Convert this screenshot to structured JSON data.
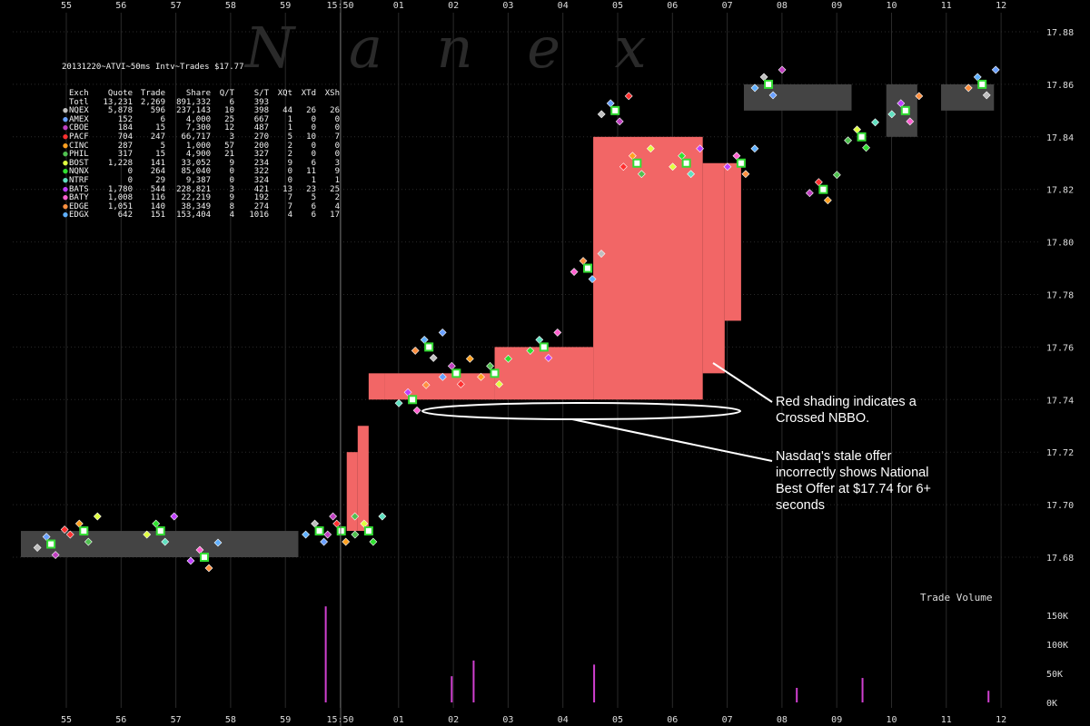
{
  "chart_title": "20131220~ATVI~50ms Intv~Trades $17.77",
  "watermark": "N a n e x",
  "stats_table": {
    "headers": [
      "Exch",
      "Quote",
      "Trade",
      "Share",
      "Q/T",
      "S/T",
      "XQt",
      "XTd",
      "XSh"
    ],
    "rows": [
      {
        "exch": "Totl",
        "quote": "13,231",
        "trade": "2,269",
        "share": "891,332",
        "qt": "6",
        "st": "393",
        "xqt": "",
        "xtd": "",
        "xsh": "",
        "color": ""
      },
      {
        "exch": "NQEX",
        "quote": "5,878",
        "trade": "596",
        "share": "237,143",
        "qt": "10",
        "st": "398",
        "xqt": "44",
        "xtd": "26",
        "xsh": "26",
        "color": "#bfbfbf"
      },
      {
        "exch": "AMEX",
        "quote": "152",
        "trade": "6",
        "share": "4,000",
        "qt": "25",
        "st": "667",
        "xqt": "1",
        "xtd": "0",
        "xsh": "0",
        "color": "#6aa0ff"
      },
      {
        "exch": "CBOE",
        "quote": "184",
        "trade": "15",
        "share": "7,300",
        "qt": "12",
        "st": "487",
        "xqt": "1",
        "xtd": "0",
        "xsh": "0",
        "color": "#c040c0"
      },
      {
        "exch": "PACF",
        "quote": "704",
        "trade": "247",
        "share": "66,717",
        "qt": "3",
        "st": "270",
        "xqt": "5",
        "xtd": "10",
        "xsh": "7",
        "color": "#ff3030"
      },
      {
        "exch": "CINC",
        "quote": "287",
        "trade": "5",
        "share": "1,000",
        "qt": "57",
        "st": "200",
        "xqt": "2",
        "xtd": "0",
        "xsh": "0",
        "color": "#ffa020"
      },
      {
        "exch": "PHIL",
        "quote": "317",
        "trade": "15",
        "share": "4,900",
        "qt": "21",
        "st": "327",
        "xqt": "2",
        "xtd": "0",
        "xsh": "0",
        "color": "#50c050"
      },
      {
        "exch": "BOST",
        "quote": "1,228",
        "trade": "141",
        "share": "33,052",
        "qt": "9",
        "st": "234",
        "xqt": "9",
        "xtd": "6",
        "xsh": "3",
        "color": "#e0ff40"
      },
      {
        "exch": "NQNX",
        "quote": "0",
        "trade": "264",
        "share": "85,040",
        "qt": "0",
        "st": "322",
        "xqt": "0",
        "xtd": "11",
        "xsh": "9",
        "color": "#30e030"
      },
      {
        "exch": "NTRF",
        "quote": "0",
        "trade": "29",
        "share": "9,387",
        "qt": "0",
        "st": "324",
        "xqt": "0",
        "xtd": "1",
        "xsh": "1",
        "color": "#60e0c0"
      },
      {
        "exch": "BATS",
        "quote": "1,780",
        "trade": "544",
        "share": "228,821",
        "qt": "3",
        "st": "421",
        "xqt": "13",
        "xtd": "23",
        "xsh": "25",
        "color": "#c040ff"
      },
      {
        "exch": "BATY",
        "quote": "1,008",
        "trade": "116",
        "share": "22,219",
        "qt": "9",
        "st": "192",
        "xqt": "7",
        "xtd": "5",
        "xsh": "2",
        "color": "#ff60d0"
      },
      {
        "exch": "EDGE",
        "quote": "1,051",
        "trade": "140",
        "share": "38,349",
        "qt": "8",
        "st": "274",
        "xqt": "7",
        "xtd": "6",
        "xsh": "4",
        "color": "#ff9040"
      },
      {
        "exch": "EDGX",
        "quote": "642",
        "trade": "151",
        "share": "153,404",
        "qt": "4",
        "st": "1016",
        "xqt": "4",
        "xtd": "6",
        "xsh": "17",
        "color": "#60b0ff"
      }
    ]
  },
  "annotations": {
    "crossed": "Red shading indicates a\nCrossed NBBO.",
    "stale": "Nasdaq's stale offer\nincorrectly shows National\nBest Offer at $17.74 for 6+\nseconds"
  },
  "volume_label": "Trade Volume",
  "colors": {
    "nbbo": "#444444",
    "crossed": "#f26666",
    "grid": "#2a2a2a",
    "axis_text": "#dddddd",
    "trade_marker": "#33dd33"
  },
  "chart_data": {
    "type": "scatter",
    "x_tick_labels": [
      "55",
      "56",
      "57",
      "58",
      "59",
      "15:50",
      "01",
      "02",
      "03",
      "04",
      "05",
      "06",
      "07",
      "08",
      "09",
      "10",
      "11",
      "12"
    ],
    "y_tick_labels": [
      "17.68",
      "17.70",
      "17.72",
      "17.74",
      "17.76",
      "17.78",
      "17.80",
      "17.82",
      "17.84",
      "17.86",
      "17.88"
    ],
    "ylim": [
      17.67,
      17.89
    ],
    "volume_tick_labels": [
      "0K",
      "50K",
      "100K",
      "150K"
    ],
    "volume_ylim": [
      0,
      170000
    ],
    "nbbo_band": [
      {
        "t0": "15:49:55",
        "t1": "15:49:59.9",
        "bid": 17.68,
        "ask": 17.69
      },
      {
        "t0": "15:50:08.2",
        "t1": "15:50:10",
        "bid": 17.85,
        "ask": 17.86
      },
      {
        "t0": "15:50:10.8",
        "t1": "15:50:11.2",
        "bid": 17.84,
        "ask": 17.86
      },
      {
        "t0": "15:50:11.8",
        "t1": "15:50:12.6",
        "bid": 17.85,
        "ask": 17.86
      }
    ],
    "crossed_periods": [
      {
        "t0": "15:50:00.8",
        "t1": "15:50:01.0",
        "bid_high": 17.72,
        "ask_low": 17.69
      },
      {
        "t0": "15:50:01.0",
        "t1": "15:50:01.2",
        "bid_high": 17.73,
        "ask_low": 17.69
      },
      {
        "t0": "15:50:01.2",
        "t1": "15:50:01.5",
        "bid_high": 17.75,
        "ask_low": 17.74
      },
      {
        "t0": "15:50:01.5",
        "t1": "15:50:03.5",
        "bid_high": 17.75,
        "ask_low": 17.74
      },
      {
        "t0": "15:50:03.5",
        "t1": "15:50:05.3",
        "bid_high": 17.76,
        "ask_low": 17.74
      },
      {
        "t0": "15:50:05.3",
        "t1": "15:50:07.3",
        "bid_high": 17.84,
        "ask_low": 17.74
      },
      {
        "t0": "15:50:07.3",
        "t1": "15:50:07.7",
        "bid_high": 17.83,
        "ask_low": 17.75
      },
      {
        "t0": "15:50:07.7",
        "t1": "15:50:08.0",
        "bid_high": 17.83,
        "ask_low": 17.77
      }
    ],
    "trades": [
      {
        "t": "15:49:55.4",
        "price": 17.685
      },
      {
        "t": "15:49:56.0",
        "price": 17.69
      },
      {
        "t": "15:49:57.4",
        "price": 17.69
      },
      {
        "t": "15:49:58.2",
        "price": 17.68
      },
      {
        "t": "15:50:00.3",
        "price": 17.69
      },
      {
        "t": "15:50:00.7",
        "price": 17.69
      },
      {
        "t": "15:50:01.2",
        "price": 17.69
      },
      {
        "t": "15:50:02.0",
        "price": 17.74
      },
      {
        "t": "15:50:02.3",
        "price": 17.76
      },
      {
        "t": "15:50:02.8",
        "price": 17.75
      },
      {
        "t": "15:50:03.5",
        "price": 17.75
      },
      {
        "t": "15:50:04.4",
        "price": 17.76
      },
      {
        "t": "15:50:05.2",
        "price": 17.79
      },
      {
        "t": "15:50:05.7",
        "price": 17.85
      },
      {
        "t": "15:50:06.1",
        "price": 17.83
      },
      {
        "t": "15:50:07.0",
        "price": 17.83
      },
      {
        "t": "15:50:08.0",
        "price": 17.83
      },
      {
        "t": "15:50:08.5",
        "price": 17.86
      },
      {
        "t": "15:50:09.5",
        "price": 17.82
      },
      {
        "t": "15:50:10.2",
        "price": 17.84
      },
      {
        "t": "15:50:11.0",
        "price": 17.85
      },
      {
        "t": "15:50:12.4",
        "price": 17.86
      }
    ],
    "volume_spikes": [
      {
        "t": "15:50:00.4",
        "volume": 165000
      },
      {
        "t": "15:50:03.1",
        "volume": 72000
      },
      {
        "t": "15:50:02.7",
        "volume": 45000
      },
      {
        "t": "15:50:05.3",
        "volume": 65000
      },
      {
        "t": "15:50:09.0",
        "volume": 25000
      },
      {
        "t": "15:50:10.2",
        "volume": 42000
      },
      {
        "t": "15:50:12.5",
        "volume": 20000
      }
    ]
  }
}
